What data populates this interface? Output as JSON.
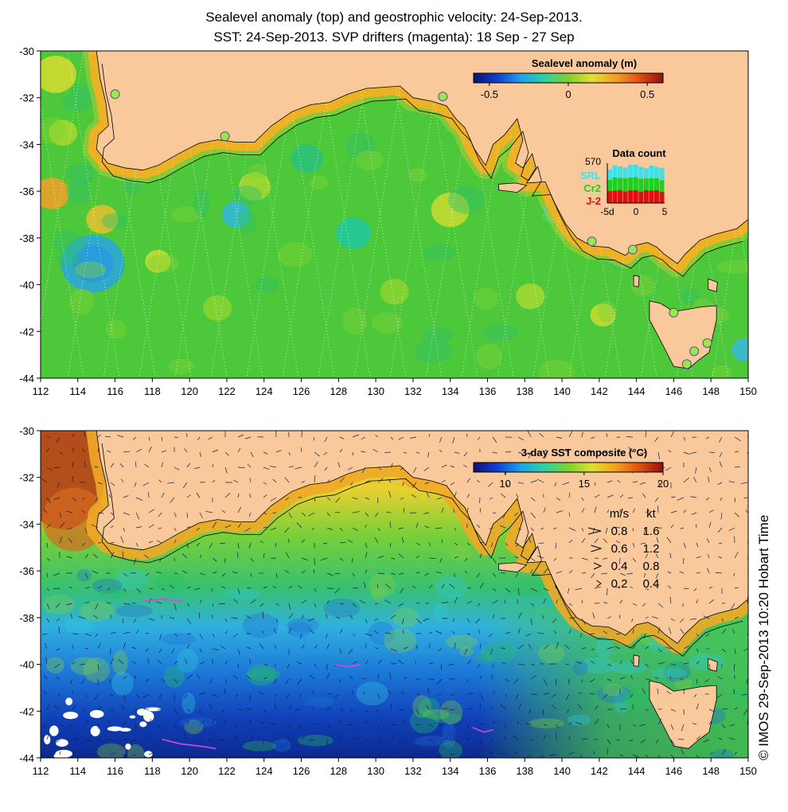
{
  "title_line1": "Sealevel anomaly (top) and geostrophic velocity: 24-Sep-2013.",
  "title_line2": "SST: 24-Sep-2013. SVP drifters (magenta): 18 Sep - 27 Sep",
  "credit": "© IMOS 29-Sep-2013 10:20 Hobart Time",
  "colors": {
    "land": "#f9c99b",
    "coast": "#000000",
    "drifter": "#e040e0"
  },
  "x_ticks": [
    "112",
    "114",
    "116",
    "118",
    "120",
    "122",
    "124",
    "126",
    "128",
    "130",
    "132",
    "134",
    "136",
    "138",
    "140",
    "142",
    "144",
    "146",
    "148",
    "150"
  ],
  "y_ticks": [
    "-30",
    "-32",
    "-34",
    "-36",
    "-38",
    "-40",
    "-42",
    "-44"
  ],
  "top_panel": {
    "colorbar_title": "Sealevel anomaly (m)",
    "colorbar_ticks": [
      "-0.5",
      "0",
      "0.5"
    ],
    "colorbar_range": [
      -0.6,
      0.6
    ],
    "data_count": {
      "title": "Data count",
      "max_label": "570",
      "satellites": [
        {
          "name": "SRL",
          "color": "#40e0e8"
        },
        {
          "name": "Cr2",
          "color": "#20d020"
        },
        {
          "name": "J-2",
          "color": "#e01010"
        }
      ],
      "x_ticks": [
        "-5d",
        "0",
        "5"
      ]
    },
    "tide_gauges": [
      {
        "lon": 116.0,
        "lat": -31.85
      },
      {
        "lon": 121.9,
        "lat": -33.65
      },
      {
        "lon": 133.6,
        "lat": -31.95
      },
      {
        "lon": 141.6,
        "lat": -38.15
      },
      {
        "lon": 143.8,
        "lat": -38.5
      },
      {
        "lon": 146.0,
        "lat": -41.2
      },
      {
        "lon": 147.1,
        "lat": -42.85
      },
      {
        "lon": 147.8,
        "lat": -42.5
      },
      {
        "lon": 146.7,
        "lat": -43.4
      }
    ]
  },
  "bottom_panel": {
    "colorbar_title": "3-day SST composite (°C)",
    "colorbar_ticks": [
      "10",
      "15",
      "20"
    ],
    "colorbar_range": [
      8,
      20
    ],
    "velocity_legend": {
      "headers": [
        "m/s",
        "kt"
      ],
      "rows": [
        {
          "ms": "0.8",
          "kt": "1.6"
        },
        {
          "ms": "0.6",
          "kt": "1.2"
        },
        {
          "ms": "0.4",
          "kt": "0.8"
        },
        {
          "ms": "0.2",
          "kt": "0.4"
        }
      ]
    }
  }
}
